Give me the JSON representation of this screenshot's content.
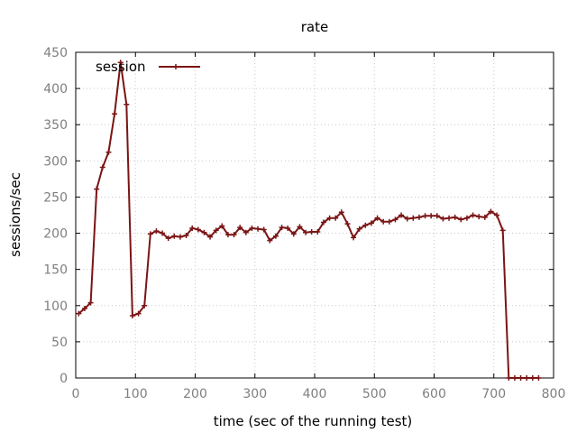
{
  "chart_data": {
    "type": "line",
    "title": "rate",
    "xlabel": "time (sec of the running test)",
    "ylabel": "sessions/sec",
    "xlim": [
      0,
      800
    ],
    "ylim": [
      0,
      450
    ],
    "xticks": [
      "0",
      "100",
      "200",
      "300",
      "400",
      "500",
      "600",
      "700",
      "800"
    ],
    "yticks": [
      "0",
      "50",
      "100",
      "150",
      "200",
      "250",
      "300",
      "350",
      "400",
      "450"
    ],
    "grid": true,
    "legend": "top-left",
    "series": [
      {
        "name": "session",
        "color": "#7b1414",
        "x": [
          5,
          15,
          25,
          35,
          45,
          55,
          65,
          75,
          85,
          95,
          105,
          115,
          125,
          135,
          145,
          155,
          165,
          175,
          185,
          195,
          205,
          215,
          225,
          235,
          245,
          255,
          265,
          275,
          285,
          295,
          305,
          315,
          325,
          335,
          345,
          355,
          365,
          375,
          385,
          395,
          405,
          415,
          425,
          435,
          445,
          455,
          465,
          475,
          485,
          495,
          505,
          515,
          525,
          535,
          545,
          555,
          565,
          575,
          585,
          595,
          605,
          615,
          625,
          635,
          645,
          655,
          665,
          675,
          685,
          695,
          705,
          715,
          725,
          735,
          745,
          755,
          765,
          775
        ],
        "y": [
          89,
          96,
          104,
          261,
          291,
          312,
          365,
          436,
          378,
          86,
          89,
          100,
          199,
          203,
          200,
          193,
          196,
          195,
          197,
          207,
          205,
          201,
          195,
          204,
          210,
          198,
          198,
          208,
          201,
          207,
          206,
          205,
          190,
          196,
          208,
          207,
          199,
          209,
          201,
          202,
          202,
          215,
          221,
          221,
          229,
          213,
          194,
          206,
          211,
          214,
          221,
          216,
          216,
          219,
          225,
          220,
          221,
          222,
          224,
          224,
          224,
          220,
          221,
          222,
          219,
          221,
          225,
          223,
          222,
          230,
          225,
          204,
          0,
          0,
          0,
          0,
          0,
          0
        ]
      }
    ]
  }
}
